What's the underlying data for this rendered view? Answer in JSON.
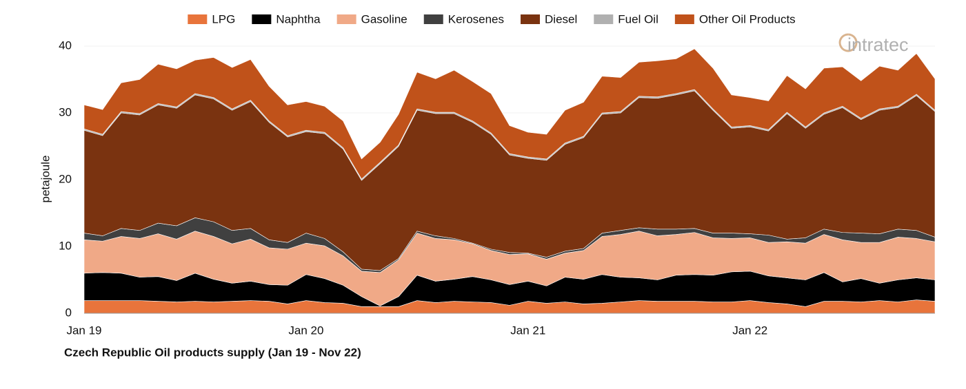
{
  "chart_data": {
    "type": "stacked_area",
    "title": "Czech Republic Oil products supply (Jan 19 - Nov 22)",
    "y_label": "petajoule",
    "logo": "intratec",
    "categories": [
      "Jan 19",
      null,
      null,
      null,
      null,
      null,
      null,
      null,
      null,
      null,
      null,
      null,
      "Jan 20",
      null,
      null,
      null,
      null,
      null,
      null,
      null,
      null,
      null,
      null,
      null,
      "Jan 21",
      null,
      null,
      null,
      null,
      null,
      null,
      null,
      null,
      null,
      null,
      null,
      "Jan 22",
      null,
      null,
      null,
      null,
      null,
      null,
      null,
      null,
      null,
      null
    ],
    "ylim": [
      0,
      40
    ],
    "yticks": [
      0,
      10,
      20,
      30,
      40
    ],
    "grid": true,
    "legend": "top",
    "series": [
      {
        "name": "LPG",
        "color": "#e8743b",
        "values": [
          1.9,
          1.9,
          1.9,
          1.9,
          1.8,
          1.7,
          1.8,
          1.7,
          1.8,
          1.9,
          1.8,
          1.4,
          1.9,
          1.6,
          1.5,
          1.0,
          1.0,
          1.0,
          1.9,
          1.6,
          1.8,
          1.7,
          1.6,
          1.2,
          1.8,
          1.5,
          1.7,
          1.4,
          1.5,
          1.7,
          1.9,
          1.8,
          1.8,
          1.8,
          1.7,
          1.7,
          1.9,
          1.6,
          1.4,
          1.0,
          1.8,
          1.8,
          1.7,
          1.9,
          1.7,
          2.0,
          1.8
        ]
      },
      {
        "name": "Naphtha",
        "color": "#000000",
        "values": [
          4.1,
          4.2,
          4.1,
          3.5,
          3.7,
          3.2,
          4.2,
          3.4,
          2.7,
          2.9,
          2.5,
          2.8,
          3.9,
          3.6,
          2.7,
          1.5,
          0.1,
          1.5,
          3.8,
          3.2,
          3.3,
          3.8,
          3.4,
          3.1,
          3.0,
          2.6,
          3.7,
          3.7,
          4.3,
          3.7,
          3.4,
          3.2,
          3.9,
          4.0,
          4.0,
          4.5,
          4.4,
          4.0,
          3.9,
          4.0,
          4.3,
          2.9,
          3.5,
          2.6,
          3.3,
          3.3,
          3.2
        ]
      },
      {
        "name": "Gasoline",
        "color": "#f0a987",
        "values": [
          5.0,
          4.7,
          5.5,
          5.8,
          6.4,
          6.2,
          6.3,
          6.4,
          5.9,
          6.3,
          5.5,
          5.4,
          4.7,
          4.9,
          4.4,
          3.8,
          5.0,
          5.5,
          6.3,
          6.4,
          5.9,
          4.9,
          4.4,
          4.5,
          4.1,
          4.0,
          3.6,
          4.3,
          5.7,
          6.4,
          7.0,
          6.6,
          6.1,
          6.3,
          5.6,
          5.0,
          5.0,
          5.0,
          5.4,
          5.5,
          5.7,
          6.3,
          5.4,
          6.1,
          6.4,
          5.9,
          5.7
        ]
      },
      {
        "name": "Kerosenes",
        "color": "#404040",
        "values": [
          1.0,
          0.8,
          1.2,
          1.2,
          1.6,
          2.0,
          2.0,
          2.2,
          2.0,
          1.6,
          1.2,
          1.0,
          1.5,
          1.1,
          0.6,
          0.3,
          0.3,
          0.2,
          0.3,
          0.4,
          0.2,
          0.1,
          0.2,
          0.3,
          0.1,
          0.3,
          0.3,
          0.3,
          0.5,
          0.6,
          0.5,
          1.0,
          0.8,
          0.6,
          0.7,
          0.8,
          0.6,
          1.1,
          0.4,
          0.8,
          0.8,
          1.1,
          1.4,
          1.3,
          1.2,
          1.2,
          0.7
        ]
      },
      {
        "name": "Diesel",
        "color": "#7a3310",
        "values": [
          15.4,
          15.0,
          17.3,
          17.3,
          17.7,
          17.6,
          18.4,
          18.4,
          18.0,
          19.0,
          17.6,
          15.8,
          15.2,
          15.7,
          15.4,
          13.3,
          16.0,
          16.8,
          18.1,
          18.3,
          18.7,
          18.1,
          17.2,
          14.6,
          14.2,
          14.5,
          16.0,
          16.6,
          17.8,
          17.6,
          19.5,
          19.6,
          20.1,
          20.6,
          18.4,
          15.7,
          16.0,
          15.6,
          18.8,
          16.4,
          17.2,
          18.7,
          17.0,
          18.5,
          18.2,
          20.2,
          18.8
        ]
      },
      {
        "name": "Fuel Oil",
        "color": "#b0b0b0",
        "values": [
          0.2,
          0.2,
          0.2,
          0.2,
          0.2,
          0.2,
          0.2,
          0.2,
          0.2,
          0.2,
          0.2,
          0.2,
          0.2,
          0.2,
          0.2,
          0.2,
          0.2,
          0.2,
          0.2,
          0.2,
          0.2,
          0.2,
          0.2,
          0.2,
          0.2,
          0.2,
          0.2,
          0.2,
          0.2,
          0.2,
          0.2,
          0.2,
          0.2,
          0.2,
          0.2,
          0.2,
          0.2,
          0.2,
          0.2,
          0.2,
          0.2,
          0.2,
          0.2,
          0.2,
          0.2,
          0.2,
          0.2
        ]
      },
      {
        "name": "Other Oil Products",
        "color": "#c0521a",
        "values": [
          3.6,
          3.7,
          4.3,
          5.1,
          5.9,
          5.7,
          5.0,
          6.0,
          6.2,
          6.1,
          5.2,
          4.6,
          4.3,
          3.9,
          4.0,
          3.0,
          3.0,
          4.6,
          5.5,
          5.0,
          6.3,
          5.9,
          5.9,
          4.2,
          3.7,
          3.7,
          4.9,
          5.1,
          5.5,
          5.1,
          5.1,
          5.4,
          5.2,
          6.1,
          6.1,
          4.8,
          4.2,
          4.3,
          5.5,
          5.7,
          6.7,
          5.9,
          5.6,
          6.4,
          5.4,
          6.1,
          4.7
        ]
      }
    ]
  }
}
